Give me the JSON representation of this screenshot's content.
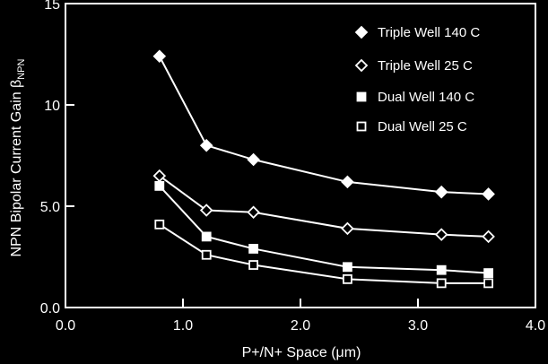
{
  "chart_data": {
    "type": "line",
    "xlabel": "P+/N+ Space (μm)",
    "ylabel": "NPN Bipolar Current Gain  β",
    "ylabel_subscript": "NPN",
    "xlim": [
      0.0,
      4.0
    ],
    "ylim": [
      0.0,
      15
    ],
    "x_ticks": [
      0.0,
      1.0,
      2.0,
      3.0,
      4.0
    ],
    "x_tick_labels": [
      "0.0",
      "1.0",
      "2.0",
      "3.0",
      "4.0"
    ],
    "y_ticks": [
      0,
      5,
      10,
      15
    ],
    "y_tick_labels": [
      "0.0",
      "5.0",
      "10",
      "15"
    ],
    "grid": false,
    "legend_position": "top-right",
    "x": [
      0.8,
      1.2,
      1.6,
      2.4,
      3.2,
      3.6
    ],
    "series": [
      {
        "name": "Triple Well  140 C",
        "marker": "filled-diamond",
        "values": [
          12.4,
          8.0,
          7.3,
          6.2,
          5.7,
          5.6
        ]
      },
      {
        "name": "Triple Well 25 C",
        "marker": "open-diamond",
        "values": [
          6.5,
          4.8,
          4.7,
          3.9,
          3.6,
          3.5
        ]
      },
      {
        "name": "Dual Well 140 C",
        "marker": "filled-square",
        "values": [
          6.0,
          3.5,
          2.9,
          2.0,
          1.85,
          1.7
        ]
      },
      {
        "name": "Dual Well 25 C",
        "marker": "open-square",
        "values": [
          4.1,
          2.6,
          2.1,
          1.4,
          1.2,
          1.2
        ]
      }
    ],
    "colors": {
      "background": "#000000",
      "foreground": "#ffffff"
    }
  }
}
